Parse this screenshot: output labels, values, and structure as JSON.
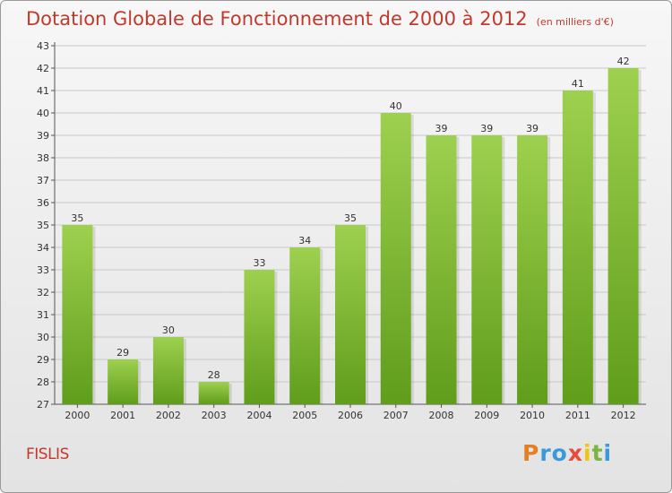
{
  "title": "Dotation Globale de Fonctionnement de 2000 à 2012",
  "unit_note": "(en milliers d'€)",
  "place": "FISLIS",
  "logo_text": "Proxiti",
  "colors": {
    "title": "#c0392b",
    "bar_top": "#9ed04f",
    "bar_bottom": "#5f9d1a",
    "grid": "#c8c8c8"
  },
  "chart_data": {
    "type": "bar",
    "title": "Dotation Globale de Fonctionnement de 2000 à 2012",
    "subtitle": "(en milliers d'€)",
    "xlabel": "",
    "ylabel": "",
    "categories": [
      "2000",
      "2001",
      "2002",
      "2003",
      "2004",
      "2005",
      "2006",
      "2007",
      "2008",
      "2009",
      "2010",
      "2011",
      "2012"
    ],
    "values": [
      35,
      29,
      30,
      28,
      33,
      34,
      35,
      40,
      39,
      39,
      39,
      41,
      42
    ],
    "ylim": [
      27,
      43
    ],
    "yticks": [
      27,
      28,
      29,
      30,
      31,
      32,
      33,
      34,
      35,
      36,
      37,
      38,
      39,
      40,
      41,
      42,
      43
    ],
    "grid": true,
    "data_labels": true
  }
}
